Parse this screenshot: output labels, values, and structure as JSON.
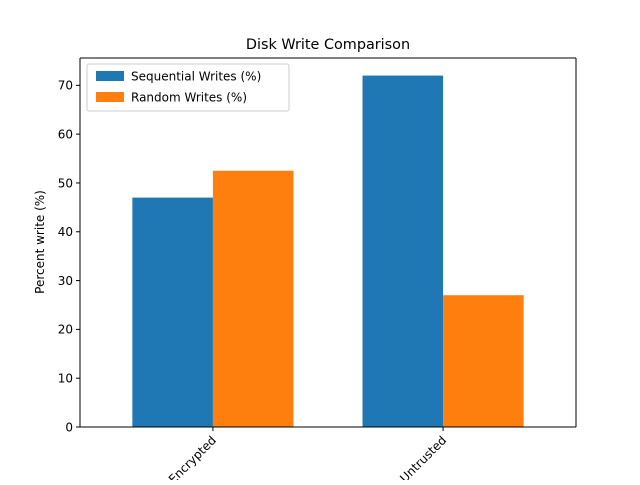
{
  "chart_data": {
    "type": "bar",
    "title": "Disk Write Comparison",
    "xlabel": "",
    "ylabel": "Percent write (%)",
    "categories": [
      "Encrypted",
      "Untrusted"
    ],
    "series": [
      {
        "name": "Sequential Writes (%)",
        "color": "#1f77b4",
        "values": [
          47,
          72
        ]
      },
      {
        "name": "Random Writes (%)",
        "color": "#ff7f0e",
        "values": [
          52.5,
          27
        ]
      }
    ],
    "ylim": [
      0,
      75.6
    ],
    "yticks": [
      0,
      10,
      20,
      30,
      40,
      50,
      60,
      70
    ],
    "grid": false,
    "legend_position": "top-left"
  }
}
